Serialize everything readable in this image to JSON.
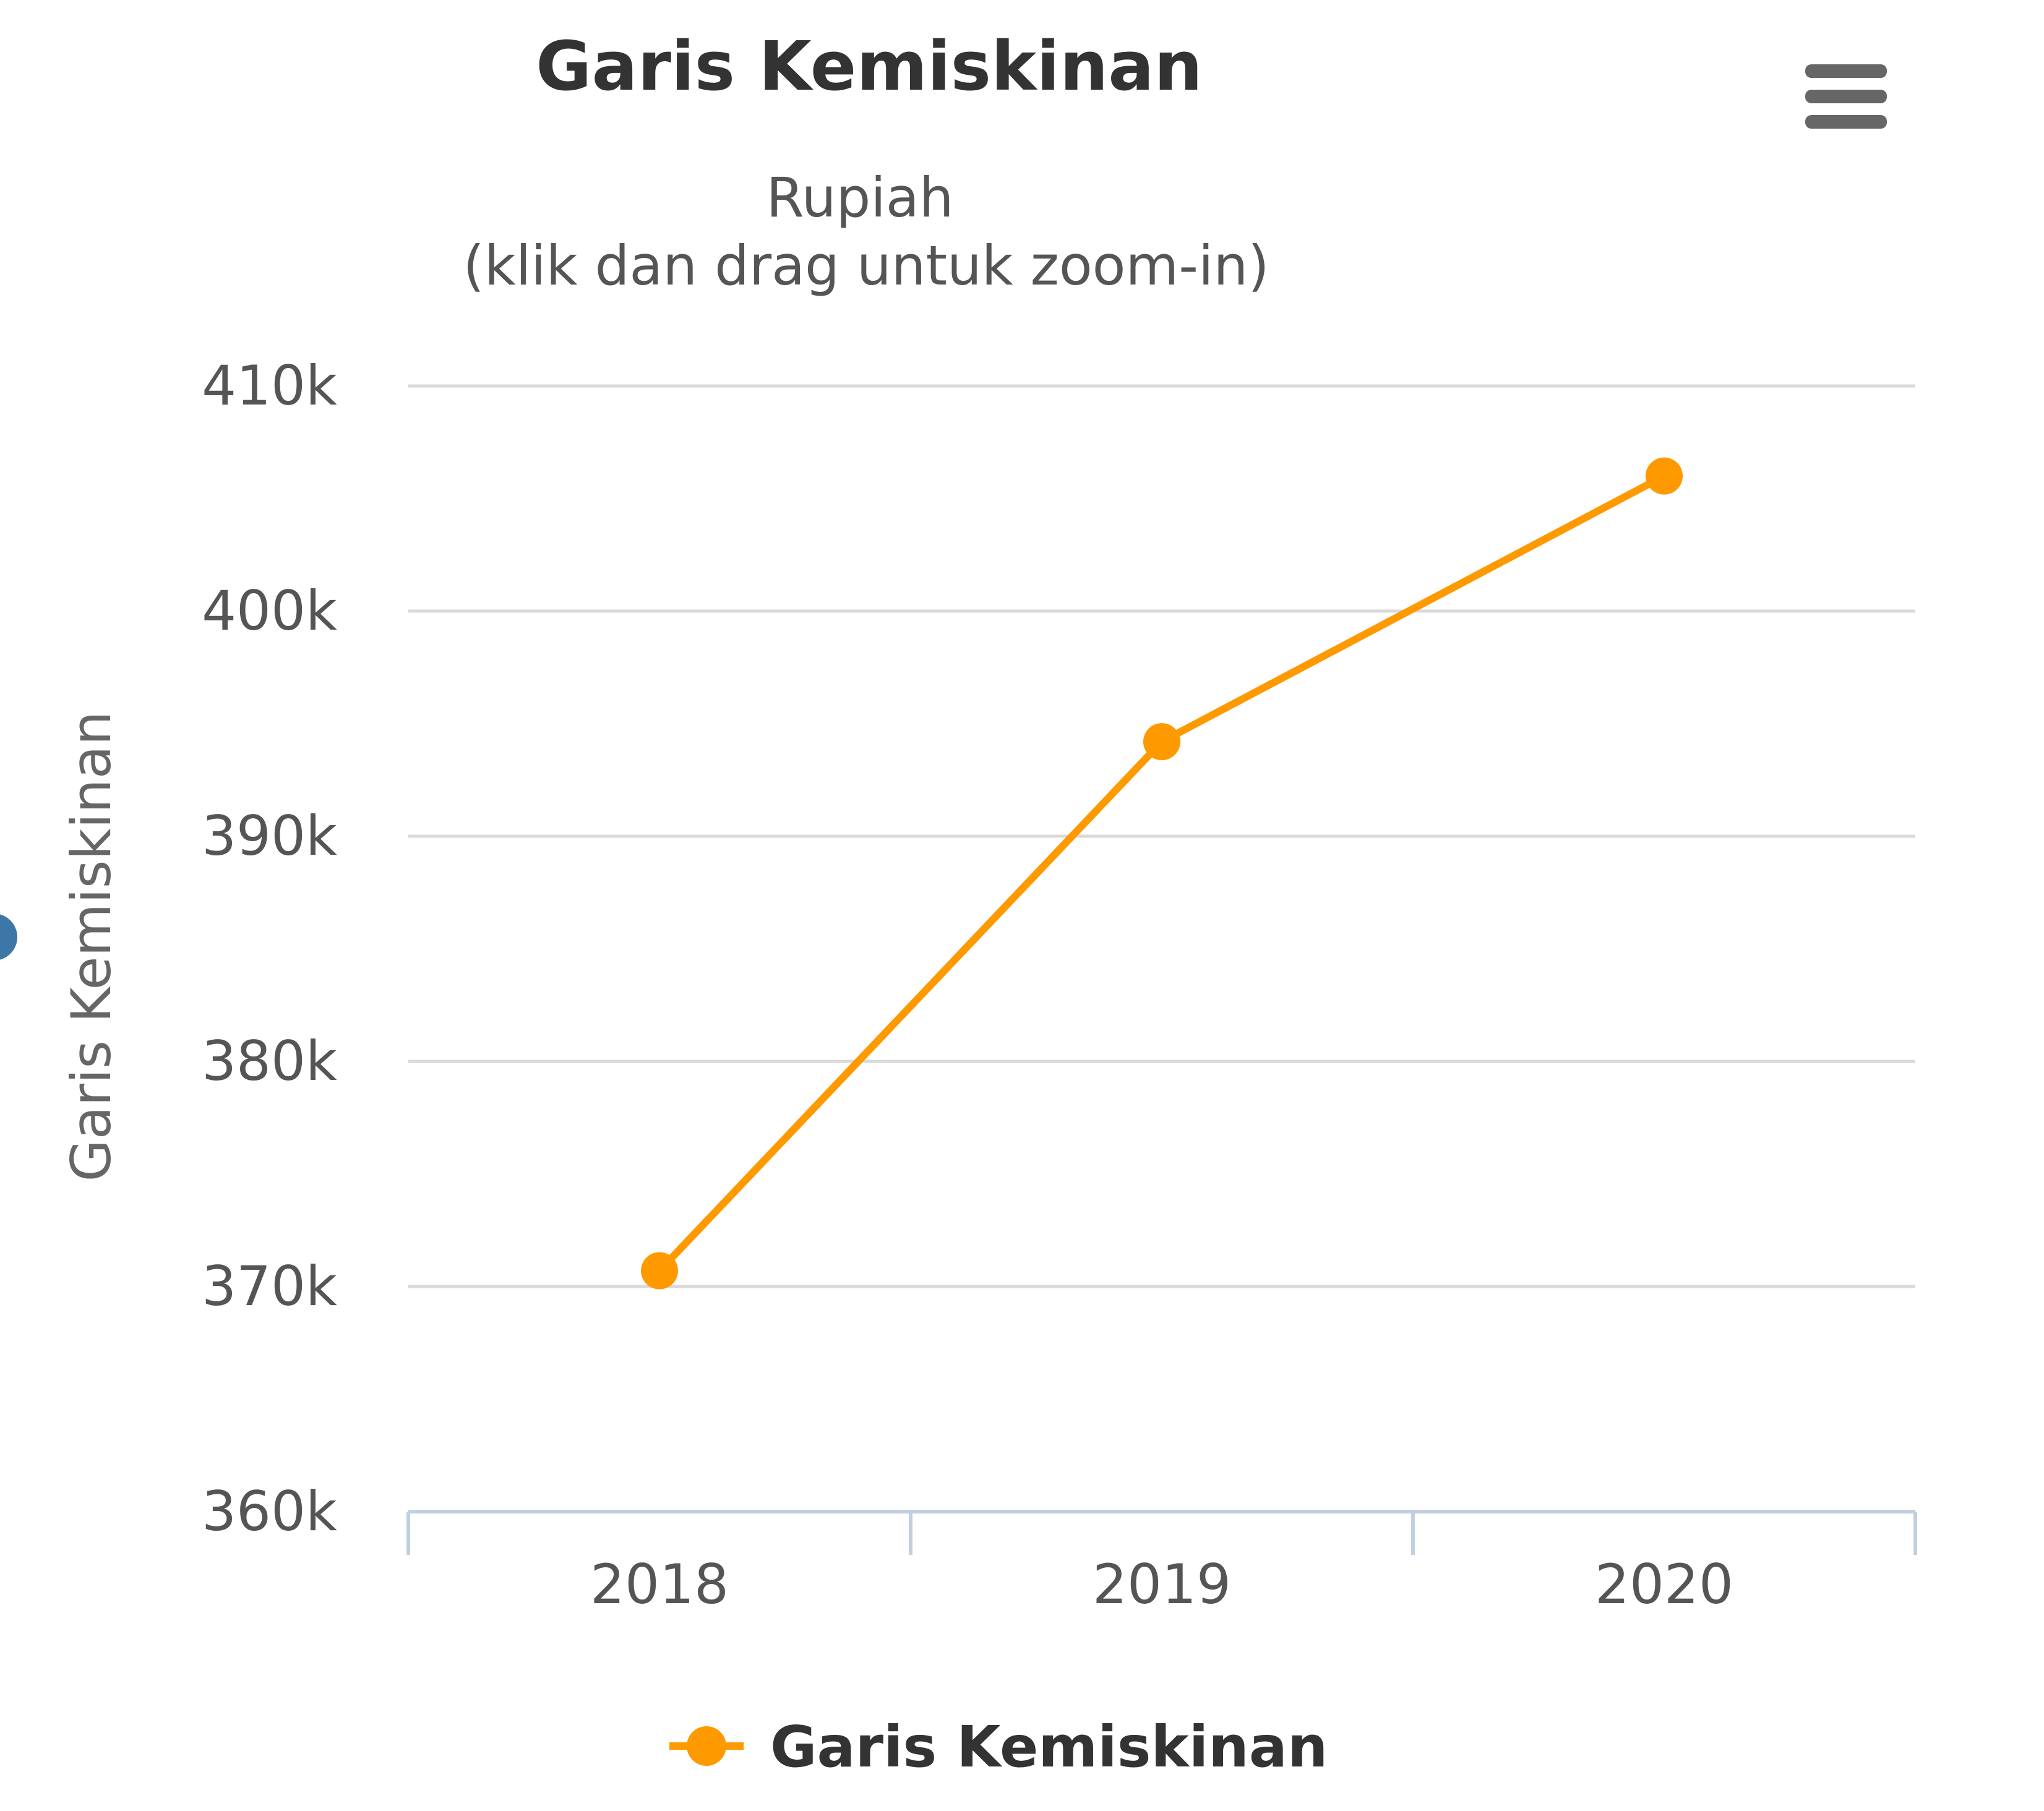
{
  "colors": {
    "series": "#ff9900",
    "grid": "#d9d9d9",
    "axis": "#c0d0e0",
    "text": "#555555",
    "menu": "#666666",
    "left_marker": "#3c77a8"
  },
  "toolbar": {
    "menu_icon": "hamburger-menu-icon"
  },
  "chart_data": {
    "type": "line",
    "title": "Garis Kemiskinan",
    "subtitle_lines": [
      "Rupiah",
      "(klik dan drag untuk zoom-in)"
    ],
    "ylabel": "Garis Kemiskinan",
    "categories": [
      "2018",
      "2019",
      "2020"
    ],
    "ylim": [
      360000,
      410000
    ],
    "yticks": [
      360000,
      370000,
      380000,
      390000,
      400000,
      410000
    ],
    "ytick_labels": [
      "360k",
      "370k",
      "380k",
      "390k",
      "400k",
      "410k"
    ],
    "series": [
      {
        "name": "Garis Kemiskinan",
        "values": [
          370700,
          394200,
          406000
        ]
      }
    ],
    "grid": true,
    "legend_position": "bottom"
  }
}
